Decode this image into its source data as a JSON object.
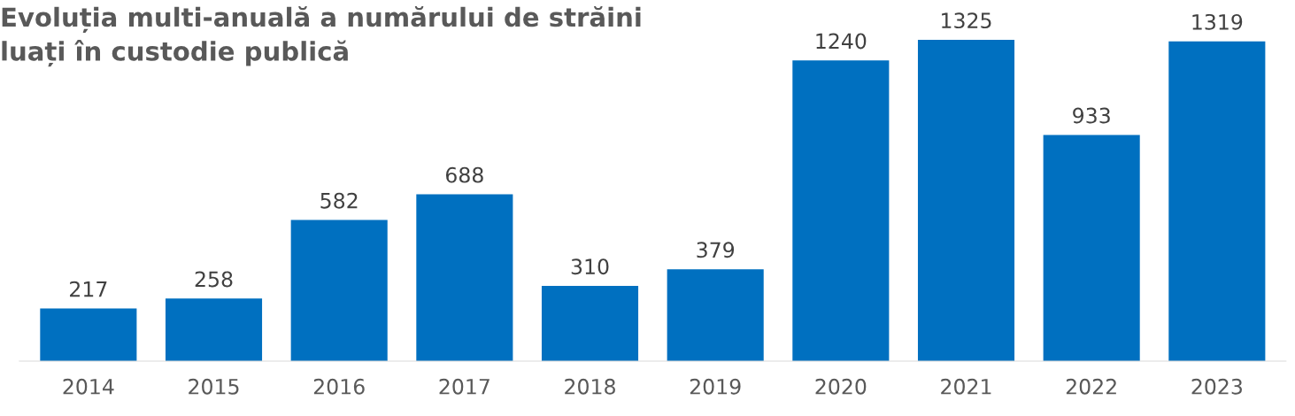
{
  "chart_data": {
    "type": "bar",
    "title": "Evoluția multi-anuală a numărului de străini\nluați în custodie publică",
    "categories": [
      "2014",
      "2015",
      "2016",
      "2017",
      "2018",
      "2019",
      "2020",
      "2021",
      "2022",
      "2023"
    ],
    "values": [
      217,
      258,
      582,
      688,
      310,
      379,
      1240,
      1325,
      933,
      1319
    ],
    "color": "#0070c0",
    "data_labels": true
  }
}
